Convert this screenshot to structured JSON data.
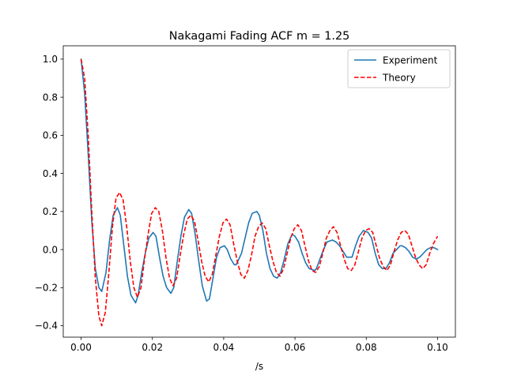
{
  "chart_data": {
    "type": "line",
    "title": "Nakagami Fading ACF m = 1.25",
    "xlabel": "/s",
    "ylabel": "",
    "xlim": [
      -0.005,
      0.105
    ],
    "ylim": [
      -0.46,
      1.07
    ],
    "x_ticks": [
      0.0,
      0.02,
      0.04,
      0.06,
      0.08,
      0.1
    ],
    "x_tick_labels": [
      "0.00",
      "0.02",
      "0.04",
      "0.06",
      "0.08",
      "0.10"
    ],
    "y_ticks": [
      -0.4,
      -0.2,
      0.0,
      0.2,
      0.4,
      0.6,
      0.8,
      1.0
    ],
    "y_tick_labels": [
      "−0.4",
      "−0.2",
      "0.0",
      "0.2",
      "0.4",
      "0.6",
      "0.8",
      "1.0"
    ],
    "grid": false,
    "legend_position": "top-right",
    "series": [
      {
        "name": "Experiment",
        "color": "#1f77b4",
        "style": "solid",
        "points": [
          [
            0.0,
            1.0
          ],
          [
            0.001,
            0.82
          ],
          [
            0.002,
            0.5
          ],
          [
            0.003,
            0.15
          ],
          [
            0.004,
            -0.1
          ],
          [
            0.005,
            -0.2
          ],
          [
            0.0058,
            -0.22
          ],
          [
            0.007,
            -0.12
          ],
          [
            0.008,
            0.05
          ],
          [
            0.009,
            0.18
          ],
          [
            0.0102,
            0.22
          ],
          [
            0.011,
            0.18
          ],
          [
            0.012,
            0.02
          ],
          [
            0.013,
            -0.14
          ],
          [
            0.014,
            -0.24
          ],
          [
            0.0153,
            -0.28
          ],
          [
            0.016,
            -0.24
          ],
          [
            0.017,
            -0.12
          ],
          [
            0.018,
            -0.02
          ],
          [
            0.019,
            0.06
          ],
          [
            0.0202,
            0.09
          ],
          [
            0.021,
            0.07
          ],
          [
            0.022,
            -0.04
          ],
          [
            0.023,
            -0.14
          ],
          [
            0.024,
            -0.2
          ],
          [
            0.0252,
            -0.23
          ],
          [
            0.026,
            -0.2
          ],
          [
            0.027,
            -0.06
          ],
          [
            0.028,
            0.07
          ],
          [
            0.029,
            0.17
          ],
          [
            0.0302,
            0.21
          ],
          [
            0.031,
            0.19
          ],
          [
            0.032,
            0.08
          ],
          [
            0.033,
            -0.06
          ],
          [
            0.034,
            -0.19
          ],
          [
            0.0352,
            -0.27
          ],
          [
            0.036,
            -0.26
          ],
          [
            0.037,
            -0.15
          ],
          [
            0.038,
            -0.04
          ],
          [
            0.039,
            0.01
          ],
          [
            0.0402,
            0.02
          ],
          [
            0.041,
            0.0
          ],
          [
            0.042,
            -0.05
          ],
          [
            0.043,
            -0.08
          ],
          [
            0.0435,
            -0.08
          ],
          [
            0.045,
            -0.02
          ],
          [
            0.046,
            0.06
          ],
          [
            0.047,
            0.14
          ],
          [
            0.048,
            0.19
          ],
          [
            0.0493,
            0.2
          ],
          [
            0.05,
            0.18
          ],
          [
            0.051,
            0.1
          ],
          [
            0.052,
            -0.02
          ],
          [
            0.053,
            -0.1
          ],
          [
            0.054,
            -0.14
          ],
          [
            0.055,
            -0.15
          ],
          [
            0.056,
            -0.12
          ],
          [
            0.057,
            -0.05
          ],
          [
            0.058,
            0.03
          ],
          [
            0.0592,
            0.08
          ],
          [
            0.06,
            0.07
          ],
          [
            0.061,
            0.04
          ],
          [
            0.062,
            -0.02
          ],
          [
            0.063,
            -0.07
          ],
          [
            0.064,
            -0.1
          ],
          [
            0.0655,
            -0.11
          ],
          [
            0.066,
            -0.1
          ],
          [
            0.067,
            -0.05
          ],
          [
            0.068,
            0.0
          ],
          [
            0.069,
            0.04
          ],
          [
            0.0705,
            0.05
          ],
          [
            0.0715,
            0.04
          ],
          [
            0.0725,
            0.02
          ],
          [
            0.0735,
            -0.01
          ],
          [
            0.0745,
            -0.04
          ],
          [
            0.076,
            -0.04
          ],
          [
            0.077,
            0.02
          ],
          [
            0.078,
            0.07
          ],
          [
            0.0792,
            0.1
          ],
          [
            0.0805,
            0.09
          ],
          [
            0.0815,
            0.06
          ],
          [
            0.0825,
            -0.02
          ],
          [
            0.0835,
            -0.08
          ],
          [
            0.0845,
            -0.1
          ],
          [
            0.0855,
            -0.1
          ],
          [
            0.0865,
            -0.07
          ],
          [
            0.0875,
            -0.02
          ],
          [
            0.0885,
            0.0
          ],
          [
            0.0895,
            0.02
          ],
          [
            0.09,
            0.02
          ],
          [
            0.091,
            0.01
          ],
          [
            0.092,
            -0.01
          ],
          [
            0.093,
            -0.04
          ],
          [
            0.094,
            -0.05
          ],
          [
            0.095,
            -0.04
          ],
          [
            0.096,
            -0.02
          ],
          [
            0.097,
            0.0
          ],
          [
            0.098,
            0.01
          ],
          [
            0.099,
            0.01
          ],
          [
            0.1,
            0.0
          ]
        ]
      },
      {
        "name": "Theory",
        "color": "#ff0000",
        "style": "dashed",
        "points": [
          [
            0.0,
            1.0
          ],
          [
            0.001,
            0.9
          ],
          [
            0.002,
            0.6
          ],
          [
            0.003,
            0.2
          ],
          [
            0.004,
            -0.15
          ],
          [
            0.005,
            -0.35
          ],
          [
            0.0058,
            -0.4
          ],
          [
            0.0068,
            -0.33
          ],
          [
            0.0078,
            -0.12
          ],
          [
            0.0088,
            0.12
          ],
          [
            0.0098,
            0.27
          ],
          [
            0.0108,
            0.3
          ],
          [
            0.0118,
            0.26
          ],
          [
            0.0128,
            0.12
          ],
          [
            0.0138,
            -0.06
          ],
          [
            0.0148,
            -0.2
          ],
          [
            0.0158,
            -0.25
          ],
          [
            0.0168,
            -0.2
          ],
          [
            0.0178,
            -0.05
          ],
          [
            0.0188,
            0.08
          ],
          [
            0.0198,
            0.19
          ],
          [
            0.0208,
            0.22
          ],
          [
            0.0218,
            0.2
          ],
          [
            0.0228,
            0.1
          ],
          [
            0.0238,
            -0.04
          ],
          [
            0.0248,
            -0.15
          ],
          [
            0.0258,
            -0.19
          ],
          [
            0.0268,
            -0.15
          ],
          [
            0.0278,
            -0.03
          ],
          [
            0.0288,
            0.08
          ],
          [
            0.0298,
            0.16
          ],
          [
            0.0308,
            0.18
          ],
          [
            0.0318,
            0.15
          ],
          [
            0.0328,
            0.05
          ],
          [
            0.0338,
            -0.06
          ],
          [
            0.0348,
            -0.14
          ],
          [
            0.0358,
            -0.17
          ],
          [
            0.0368,
            -0.13
          ],
          [
            0.0378,
            -0.03
          ],
          [
            0.0388,
            0.07
          ],
          [
            0.0398,
            0.14
          ],
          [
            0.0408,
            0.16
          ],
          [
            0.0418,
            0.13
          ],
          [
            0.0428,
            0.03
          ],
          [
            0.0438,
            -0.06
          ],
          [
            0.0448,
            -0.13
          ],
          [
            0.0458,
            -0.15
          ],
          [
            0.0468,
            -0.11
          ],
          [
            0.0478,
            -0.03
          ],
          [
            0.0488,
            0.07
          ],
          [
            0.0498,
            0.12
          ],
          [
            0.0508,
            0.14
          ],
          [
            0.0518,
            0.11
          ],
          [
            0.0528,
            0.02
          ],
          [
            0.0538,
            -0.06
          ],
          [
            0.0548,
            -0.12
          ],
          [
            0.0558,
            -0.14
          ],
          [
            0.0568,
            -0.1
          ],
          [
            0.0578,
            -0.02
          ],
          [
            0.0588,
            0.06
          ],
          [
            0.0598,
            0.11
          ],
          [
            0.0608,
            0.13
          ],
          [
            0.0618,
            0.1
          ],
          [
            0.0628,
            0.02
          ],
          [
            0.0638,
            -0.06
          ],
          [
            0.0648,
            -0.11
          ],
          [
            0.0658,
            -0.12
          ],
          [
            0.0668,
            -0.09
          ],
          [
            0.0678,
            -0.02
          ],
          [
            0.0688,
            0.06
          ],
          [
            0.0698,
            0.1
          ],
          [
            0.0708,
            0.12
          ],
          [
            0.0718,
            0.09
          ],
          [
            0.0728,
            0.02
          ],
          [
            0.0738,
            -0.05
          ],
          [
            0.0748,
            -0.1
          ],
          [
            0.0758,
            -0.11
          ],
          [
            0.0768,
            -0.08
          ],
          [
            0.0778,
            -0.01
          ],
          [
            0.0788,
            0.06
          ],
          [
            0.0798,
            0.1
          ],
          [
            0.0808,
            0.11
          ],
          [
            0.0818,
            0.09
          ],
          [
            0.0828,
            0.02
          ],
          [
            0.0838,
            -0.05
          ],
          [
            0.0848,
            -0.09
          ],
          [
            0.0858,
            -0.11
          ],
          [
            0.0868,
            -0.08
          ],
          [
            0.0878,
            -0.01
          ],
          [
            0.0888,
            0.05
          ],
          [
            0.0898,
            0.09
          ],
          [
            0.0908,
            0.1
          ],
          [
            0.0918,
            0.08
          ],
          [
            0.0928,
            0.02
          ],
          [
            0.0938,
            -0.04
          ],
          [
            0.0948,
            -0.08
          ],
          [
            0.0958,
            -0.1
          ],
          [
            0.0968,
            -0.08
          ],
          [
            0.0978,
            -0.02
          ],
          [
            0.0988,
            0.03
          ],
          [
            0.1,
            0.07
          ]
        ]
      }
    ]
  }
}
